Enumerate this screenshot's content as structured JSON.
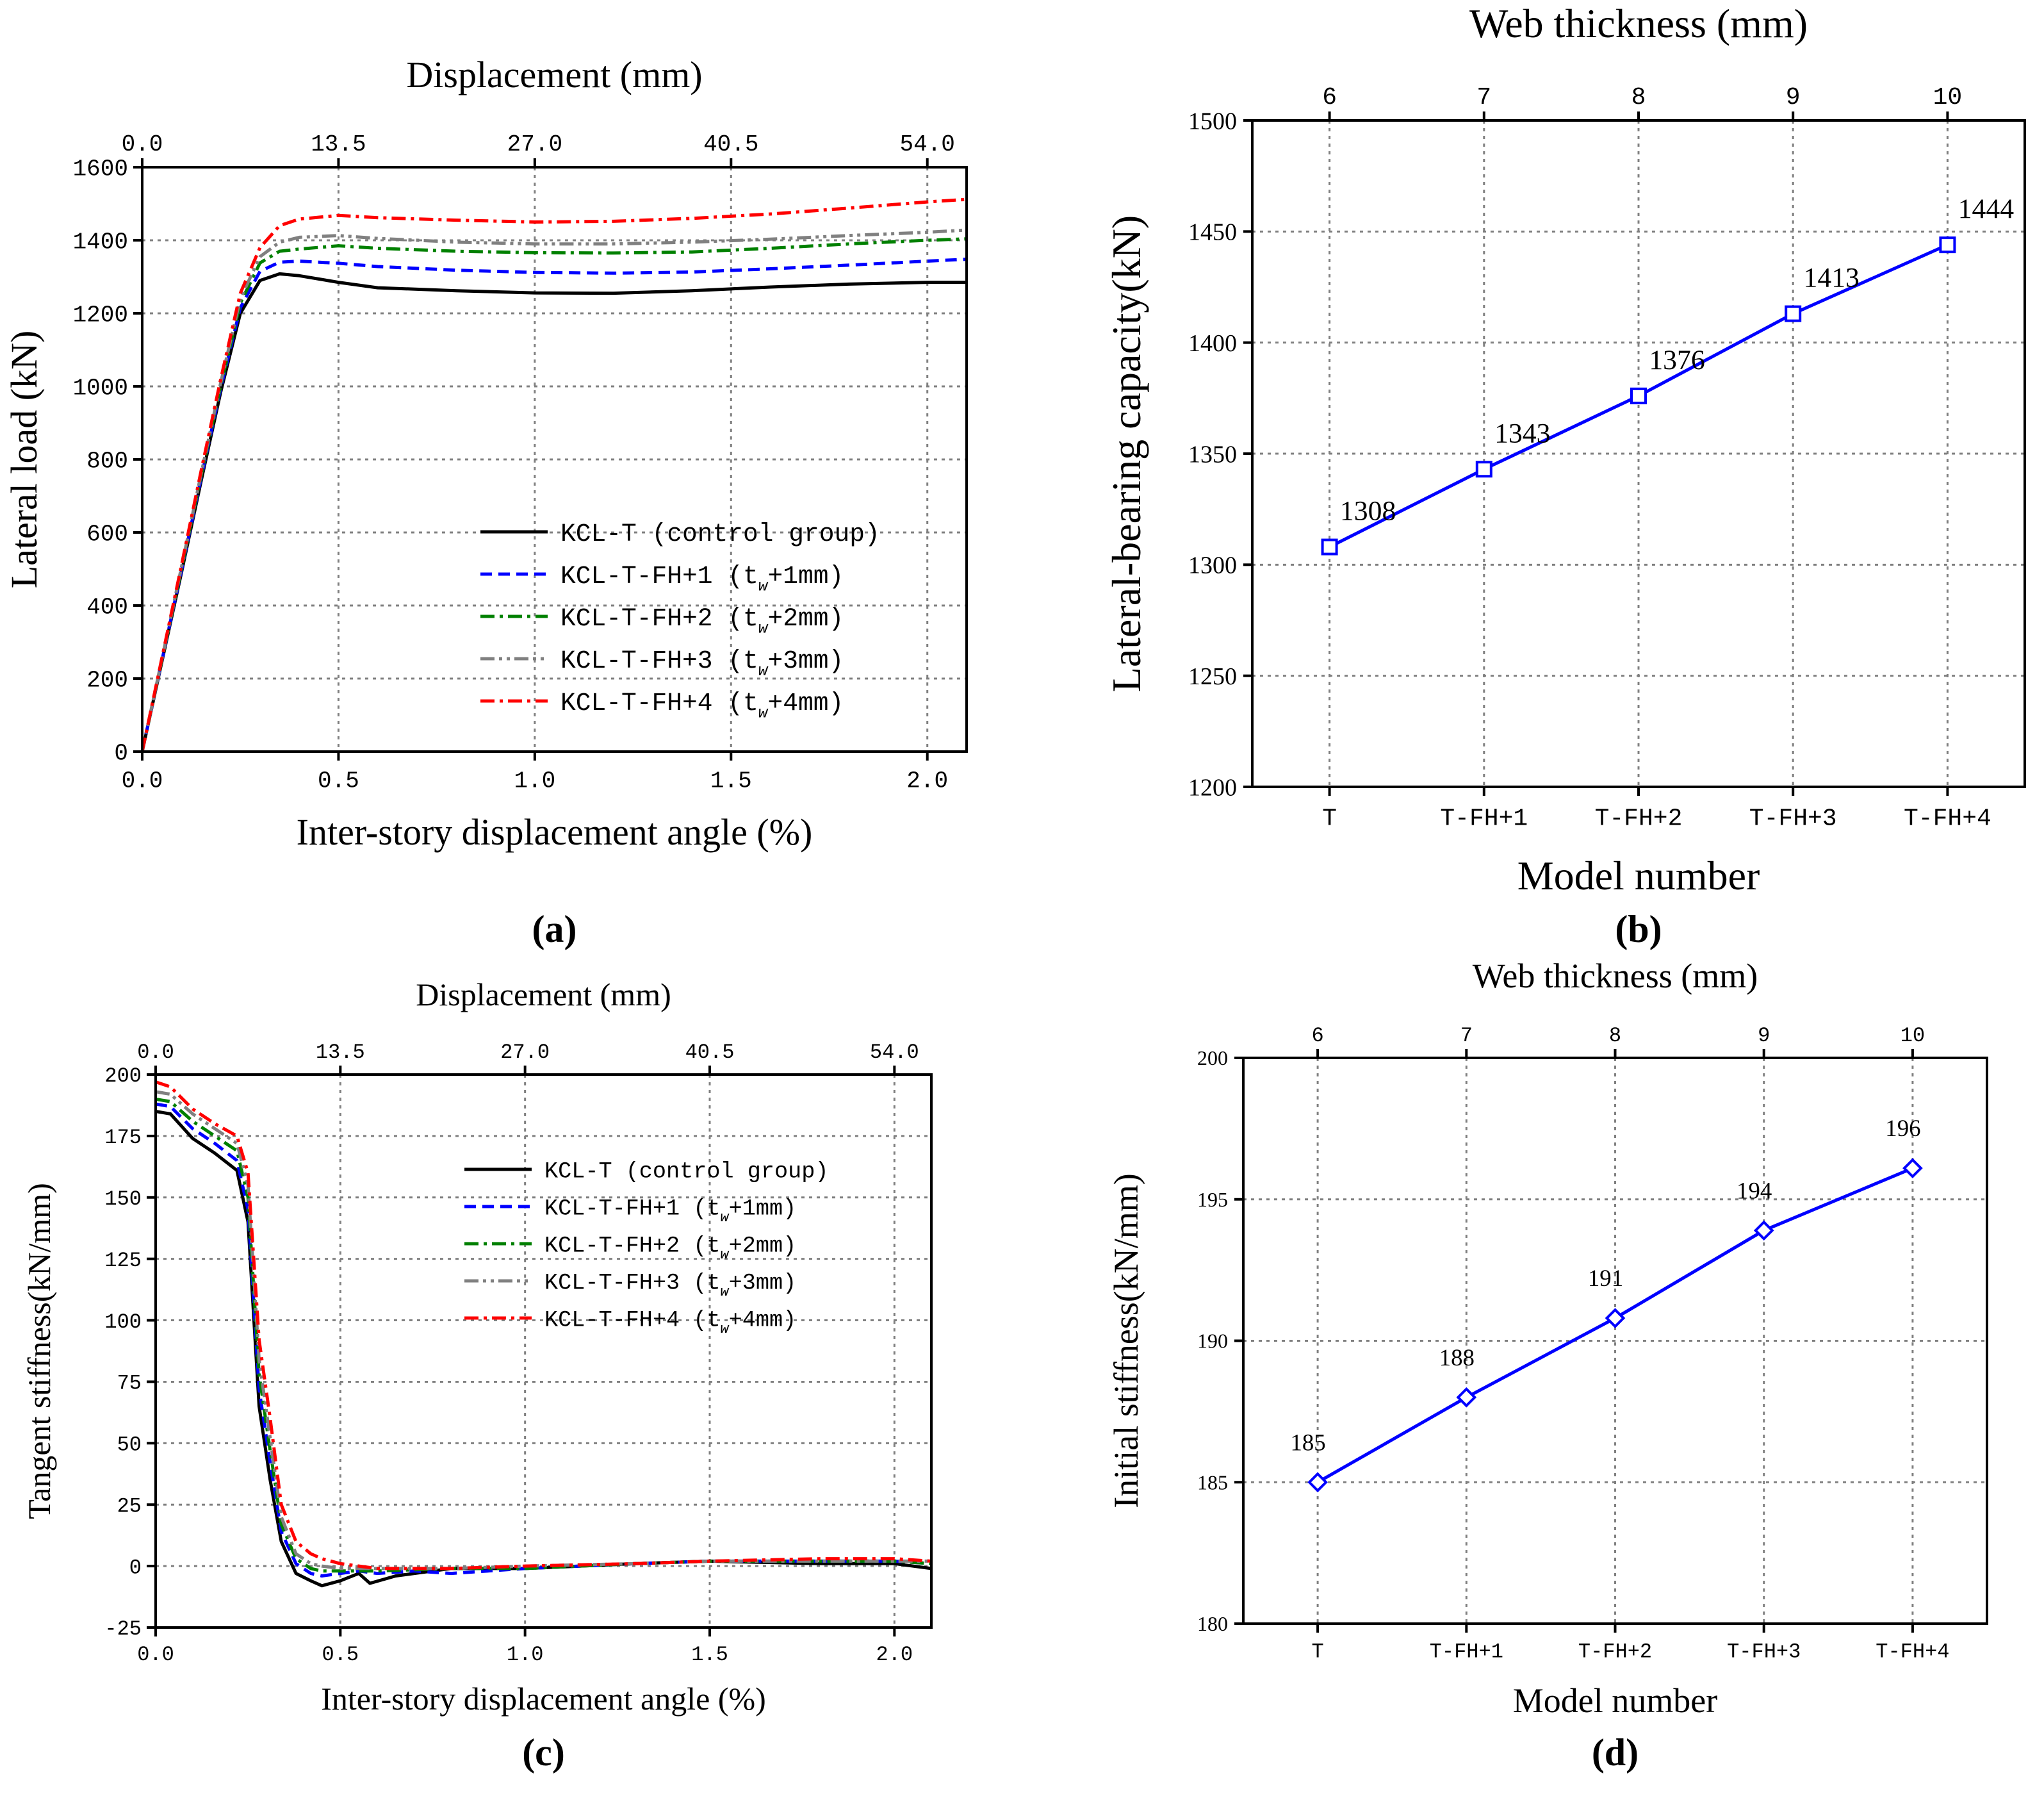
{
  "chart_data": [
    {
      "panel": "a",
      "type": "line",
      "caption": "(a)",
      "title": "",
      "xlabel": "Inter-story displacement angle (%)",
      "ylabel": "Lateral load (kN)",
      "x2label": "Displacement (mm)",
      "xlim": [
        0,
        2.1
      ],
      "ylim": [
        0,
        1600
      ],
      "x2lim": [
        0,
        56.7
      ],
      "xticks": [
        "0.0",
        "0.5",
        "1.0",
        "1.5",
        "2.0"
      ],
      "xtick_values": [
        0,
        0.5,
        1.0,
        1.5,
        2.0
      ],
      "yticks": [
        "0",
        "200",
        "400",
        "600",
        "800",
        "1000",
        "1200",
        "1400",
        "1600"
      ],
      "ytick_values": [
        0,
        200,
        400,
        600,
        800,
        1000,
        1200,
        1400,
        1600
      ],
      "x2ticks": [
        "0.0",
        "13.5",
        "27.0",
        "40.5",
        "54.0"
      ],
      "x2tick_values": [
        0,
        13.5,
        27.0,
        40.5,
        54.0
      ],
      "grid": true,
      "legend_position": "lower-right",
      "series": [
        {
          "name": "KCL-T (control group)",
          "legend_main": "KCL-T (control group)",
          "legend_sub": "",
          "legend_tail": "",
          "color": "#000000",
          "dash": "none",
          "x": [
            0,
            0.05,
            0.1,
            0.15,
            0.2,
            0.25,
            0.3,
            0.35,
            0.4,
            0.5,
            0.6,
            0.8,
            1.0,
            1.2,
            1.4,
            1.6,
            1.8,
            2.0,
            2.1
          ],
          "y": [
            0,
            245,
            490,
            740,
            985,
            1200,
            1290,
            1308,
            1303,
            1285,
            1270,
            1262,
            1256,
            1255,
            1262,
            1272,
            1280,
            1285,
            1285
          ]
        },
        {
          "name": "KCL-T-FH+1 (tw+1mm)",
          "legend_main": "KCL-T-FH+1 (t",
          "legend_sub": "w",
          "legend_tail": "+1mm)",
          "color": "#0000ff",
          "dash": "18,10",
          "x": [
            0,
            0.05,
            0.1,
            0.15,
            0.2,
            0.25,
            0.3,
            0.35,
            0.4,
            0.5,
            0.6,
            0.8,
            1.0,
            1.2,
            1.4,
            1.6,
            1.8,
            2.0,
            2.1
          ],
          "y": [
            0,
            248,
            495,
            748,
            995,
            1215,
            1315,
            1340,
            1343,
            1337,
            1328,
            1318,
            1312,
            1310,
            1313,
            1322,
            1332,
            1343,
            1348
          ]
        },
        {
          "name": "KCL-T-FH+2 (tw+2mm)",
          "legend_main": "KCL-T-FH+2 (t",
          "legend_sub": "w",
          "legend_tail": "+2mm)",
          "color": "#008000",
          "dash": "22,8,5,8",
          "x": [
            0,
            0.05,
            0.1,
            0.15,
            0.2,
            0.25,
            0.3,
            0.35,
            0.4,
            0.5,
            0.6,
            0.8,
            1.0,
            1.2,
            1.4,
            1.6,
            1.8,
            2.0,
            2.1
          ],
          "y": [
            0,
            250,
            500,
            755,
            1003,
            1228,
            1338,
            1370,
            1376,
            1385,
            1378,
            1370,
            1366,
            1365,
            1368,
            1378,
            1390,
            1400,
            1404
          ]
        },
        {
          "name": "KCL-T-FH+3 (tw+3mm)",
          "legend_main": "KCL-T-FH+3 (t",
          "legend_sub": "w",
          "legend_tail": "+3mm)",
          "color": "#808080",
          "dash": "22,7,5,7,5,7",
          "x": [
            0,
            0.05,
            0.1,
            0.15,
            0.2,
            0.25,
            0.3,
            0.35,
            0.4,
            0.5,
            0.6,
            0.8,
            1.0,
            1.2,
            1.4,
            1.6,
            1.8,
            2.0,
            2.1
          ],
          "y": [
            0,
            252,
            505,
            760,
            1010,
            1240,
            1355,
            1395,
            1408,
            1413,
            1405,
            1395,
            1390,
            1390,
            1395,
            1403,
            1413,
            1422,
            1428
          ]
        },
        {
          "name": "KCL-T-FH+4 (tw+4mm)",
          "legend_main": "KCL-T-FH+4 (t",
          "legend_sub": "w",
          "legend_tail": "+4mm)",
          "color": "#ff0000",
          "dash": "22,8,5,8",
          "x": [
            0,
            0.05,
            0.1,
            0.15,
            0.2,
            0.25,
            0.3,
            0.35,
            0.4,
            0.5,
            0.6,
            0.8,
            1.0,
            1.2,
            1.4,
            1.6,
            1.8,
            2.0,
            2.1
          ],
          "y": [
            0,
            255,
            510,
            768,
            1020,
            1255,
            1380,
            1440,
            1458,
            1468,
            1462,
            1455,
            1450,
            1452,
            1460,
            1472,
            1488,
            1505,
            1512
          ]
        }
      ]
    },
    {
      "panel": "b",
      "type": "line",
      "caption": "(b)",
      "title": "",
      "xlabel": "Model number",
      "ylabel": "Lateral-bearing capacity(kN)",
      "x2label": "Web thickness (mm)",
      "categories": [
        "T",
        "T-FH+1",
        "T-FH+2",
        "T-FH+3",
        "T-FH+4"
      ],
      "x2ticks": [
        "6",
        "7",
        "8",
        "9",
        "10"
      ],
      "ylim": [
        1200,
        1500
      ],
      "yticks": [
        "1200",
        "1250",
        "1300",
        "1350",
        "1400",
        "1450",
        "1500"
      ],
      "ytick_values": [
        1200,
        1250,
        1300,
        1350,
        1400,
        1450,
        1500
      ],
      "grid": true,
      "marker": "square",
      "color": "#0000ff",
      "values": [
        1308,
        1343,
        1376,
        1413,
        1444
      ],
      "data_labels": [
        "1308",
        "1343",
        "1376",
        "1413",
        "1444"
      ]
    },
    {
      "panel": "c",
      "type": "line",
      "caption": "(c)",
      "title": "",
      "xlabel": "Inter-story displacement angle (%)",
      "ylabel": "Tangent stiffness(kN/mm)",
      "x2label": "Displacement (mm)",
      "xlim": [
        0,
        2.1
      ],
      "ylim": [
        -25,
        200
      ],
      "x2lim": [
        0,
        56.7
      ],
      "xticks": [
        "0.0",
        "0.5",
        "1.0",
        "1.5",
        "2.0"
      ],
      "xtick_values": [
        0,
        0.5,
        1.0,
        1.5,
        2.0
      ],
      "yticks": [
        "-25",
        "0",
        "25",
        "50",
        "75",
        "100",
        "125",
        "150",
        "175",
        "200"
      ],
      "ytick_values": [
        -25,
        0,
        25,
        50,
        75,
        100,
        125,
        150,
        175,
        200
      ],
      "x2ticks": [
        "0.0",
        "13.5",
        "27.0",
        "40.5",
        "54.0"
      ],
      "x2tick_values": [
        0,
        13.5,
        27.0,
        40.5,
        54.0
      ],
      "grid": true,
      "legend_position": "upper-right",
      "series": [
        {
          "name": "KCL-T (control group)",
          "legend_main": "KCL-T (control group)",
          "legend_sub": "",
          "legend_tail": "",
          "color": "#000000",
          "dash": "none",
          "x": [
            0,
            0.04,
            0.1,
            0.16,
            0.22,
            0.25,
            0.28,
            0.31,
            0.34,
            0.38,
            0.42,
            0.45,
            0.5,
            0.55,
            0.58,
            0.65,
            0.8,
            1.0,
            1.3,
            1.5,
            1.8,
            2.0,
            2.1
          ],
          "y": [
            185,
            184,
            174,
            168,
            161,
            140,
            65,
            35,
            10,
            -3,
            -6,
            -8,
            -6,
            -3,
            -7,
            -4,
            -1,
            -1,
            1,
            2,
            1,
            1,
            -1
          ]
        },
        {
          "name": "KCL-T-FH+1 (tw+1mm)",
          "legend_main": "KCL-T-FH+1 (t",
          "legend_sub": "w",
          "legend_tail": "+1mm)",
          "color": "#0000ff",
          "dash": "18,10",
          "x": [
            0,
            0.04,
            0.1,
            0.16,
            0.22,
            0.25,
            0.28,
            0.31,
            0.34,
            0.38,
            0.42,
            0.45,
            0.5,
            0.55,
            0.6,
            0.7,
            0.8,
            1.0,
            1.3,
            1.5,
            1.8,
            2.0,
            2.1
          ],
          "y": [
            188,
            187,
            178,
            172,
            165,
            145,
            72,
            42,
            14,
            1,
            -3,
            -4,
            -3,
            -2,
            -3,
            -2,
            -3,
            -1,
            1,
            2,
            2,
            2,
            1
          ]
        },
        {
          "name": "KCL-T-FH+2 (tw+2mm)",
          "legend_main": "KCL-T-FH+2 (t",
          "legend_sub": "w",
          "legend_tail": "+2mm)",
          "color": "#008000",
          "dash": "22,8,5,8",
          "x": [
            0,
            0.04,
            0.1,
            0.16,
            0.22,
            0.25,
            0.28,
            0.31,
            0.34,
            0.38,
            0.42,
            0.45,
            0.5,
            0.55,
            0.6,
            0.8,
            1.0,
            1.3,
            1.5,
            1.8,
            2.0,
            2.1
          ],
          "y": [
            190,
            189,
            181,
            175,
            169,
            150,
            78,
            47,
            17,
            3,
            -1,
            -2,
            -2,
            -2,
            -2,
            -1,
            -1,
            1,
            2,
            2,
            2,
            1
          ]
        },
        {
          "name": "KCL-T-FH+3 (tw+3mm)",
          "legend_main": "KCL-T-FH+3 (t",
          "legend_sub": "w",
          "legend_tail": "+3mm)",
          "color": "#808080",
          "dash": "22,7,5,7,5,7",
          "x": [
            0,
            0.04,
            0.1,
            0.16,
            0.22,
            0.25,
            0.28,
            0.31,
            0.34,
            0.38,
            0.42,
            0.45,
            0.5,
            0.55,
            0.6,
            0.8,
            1.0,
            1.3,
            1.5,
            1.8,
            2.0,
            2.1
          ],
          "y": [
            193,
            192,
            184,
            178,
            172,
            155,
            84,
            52,
            20,
            5,
            1,
            0,
            -1,
            -1,
            -1,
            -1,
            0,
            1,
            2,
            2,
            2,
            2
          ]
        },
        {
          "name": "KCL-T-FH+4 (tw+4mm)",
          "legend_main": "KCL-T-FH+4 (t",
          "legend_sub": "w",
          "legend_tail": "+4mm)",
          "color": "#ff0000",
          "dash": "22,8,5,8",
          "x": [
            0,
            0.04,
            0.1,
            0.16,
            0.22,
            0.25,
            0.28,
            0.31,
            0.34,
            0.38,
            0.42,
            0.45,
            0.5,
            0.55,
            0.6,
            0.8,
            1.0,
            1.3,
            1.5,
            1.8,
            2.0,
            2.1
          ],
          "y": [
            197,
            195,
            186,
            180,
            175,
            160,
            92,
            60,
            25,
            10,
            5,
            3,
            1,
            0,
            -1,
            -1,
            0,
            1,
            2,
            3,
            3,
            2
          ]
        }
      ]
    },
    {
      "panel": "d",
      "type": "line",
      "caption": "(d)",
      "title": "",
      "xlabel": "Model number",
      "ylabel": "Initial stiffness(kN/mm)",
      "x2label": "Web thickness (mm)",
      "categories": [
        "T",
        "T-FH+1",
        "T-FH+2",
        "T-FH+3",
        "T-FH+4"
      ],
      "x2ticks": [
        "6",
        "7",
        "8",
        "9",
        "10"
      ],
      "ylim": [
        180,
        200
      ],
      "yticks": [
        "180",
        "185",
        "190",
        "195",
        "200"
      ],
      "ytick_values": [
        180,
        185,
        190,
        195,
        200
      ],
      "grid": true,
      "marker": "diamond",
      "color": "#0000ff",
      "values": [
        185,
        188,
        190.8,
        193.9,
        196.1
      ],
      "data_labels": [
        "185",
        "188",
        "191",
        "194",
        "196"
      ]
    }
  ]
}
